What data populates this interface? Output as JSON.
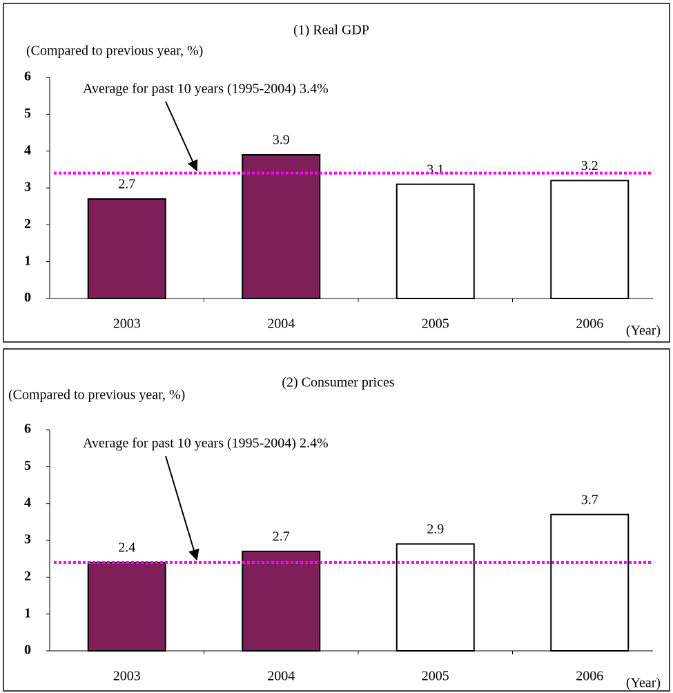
{
  "chart_data": [
    {
      "type": "bar",
      "title": "(1) Real GDP",
      "y_label": "(Compared to previous year, %)",
      "x_unit": "(Year)",
      "categories": [
        "2003",
        "2004",
        "2005",
        "2006"
      ],
      "values": [
        2.7,
        3.9,
        3.1,
        3.2
      ],
      "colors": [
        "#7f1f5a",
        "#7f1f5a",
        "#ffffff",
        "#ffffff"
      ],
      "ylim": [
        0,
        6
      ],
      "yticks": [
        0,
        1,
        2,
        3,
        4,
        5,
        6
      ],
      "grid": false,
      "average": {
        "value": 3.4,
        "label": "Average for past 10 years (1995-2004)  3.4%",
        "color": "#ff00ff"
      }
    },
    {
      "type": "bar",
      "title": "(2) Consumer prices",
      "y_label": "(Compared to previous year, %)",
      "x_unit": "(Year)",
      "categories": [
        "2003",
        "2004",
        "2005",
        "2006"
      ],
      "values": [
        2.4,
        2.7,
        2.9,
        3.7
      ],
      "colors": [
        "#7f1f5a",
        "#7f1f5a",
        "#ffffff",
        "#ffffff"
      ],
      "ylim": [
        0,
        6
      ],
      "yticks": [
        0,
        1,
        2,
        3,
        4,
        5,
        6
      ],
      "grid": false,
      "average": {
        "value": 2.4,
        "label": "Average for past 10 years (1995-2004)  2.4%",
        "color": "#ff00ff"
      }
    }
  ]
}
